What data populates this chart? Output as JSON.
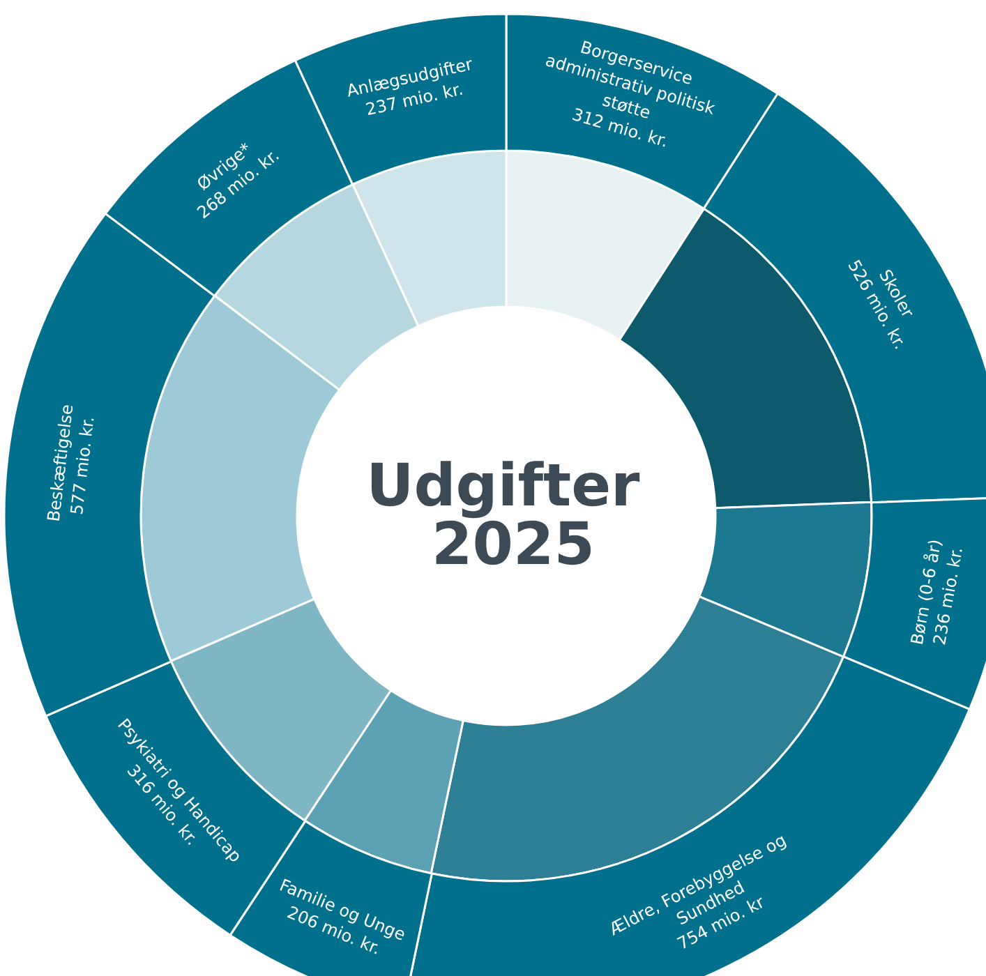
{
  "chart_data": {
    "type": "donut",
    "title": "Udgifter 2025",
    "categories": [
      "Borgerservice administrativ politisk støtte",
      "Skoler",
      "Børn (0-6 år)",
      "Ældre, Forebyggelse og Sundhed",
      "Familie og Unge",
      "Psykiatri og Handicap",
      "Beskæftigelse",
      "Øvrige*",
      "Anlægsudgifter"
    ],
    "series": [
      {
        "values": [
          9.1,
          15.3,
          6.9,
          22.0,
          6.0,
          9.2,
          16.8,
          7.8,
          6.9
        ],
        "colors": [
          "#e8f2f4",
          "#0d5a6d",
          "#1d7891",
          "#2d7f95",
          "#5da2b4",
          "#7fb6c4",
          "#9dcad6",
          "#b6d7e0",
          "#cfe5eb"
        ]
      },
      {
        "values": [
          312,
          526,
          236,
          754,
          206,
          316,
          577,
          268,
          237
        ],
        "color": "#00708d",
        "value_labels": [
          "312 mio. kr.",
          "526 mio. kr.",
          "236 mio. kr.",
          "754 mio. kr",
          "206 mio. kr.",
          "316 mio. kr.",
          "577 mio. kr.",
          "268 mio. kr.",
          "237 mio. kr."
        ]
      }
    ],
    "legend": false
  }
}
